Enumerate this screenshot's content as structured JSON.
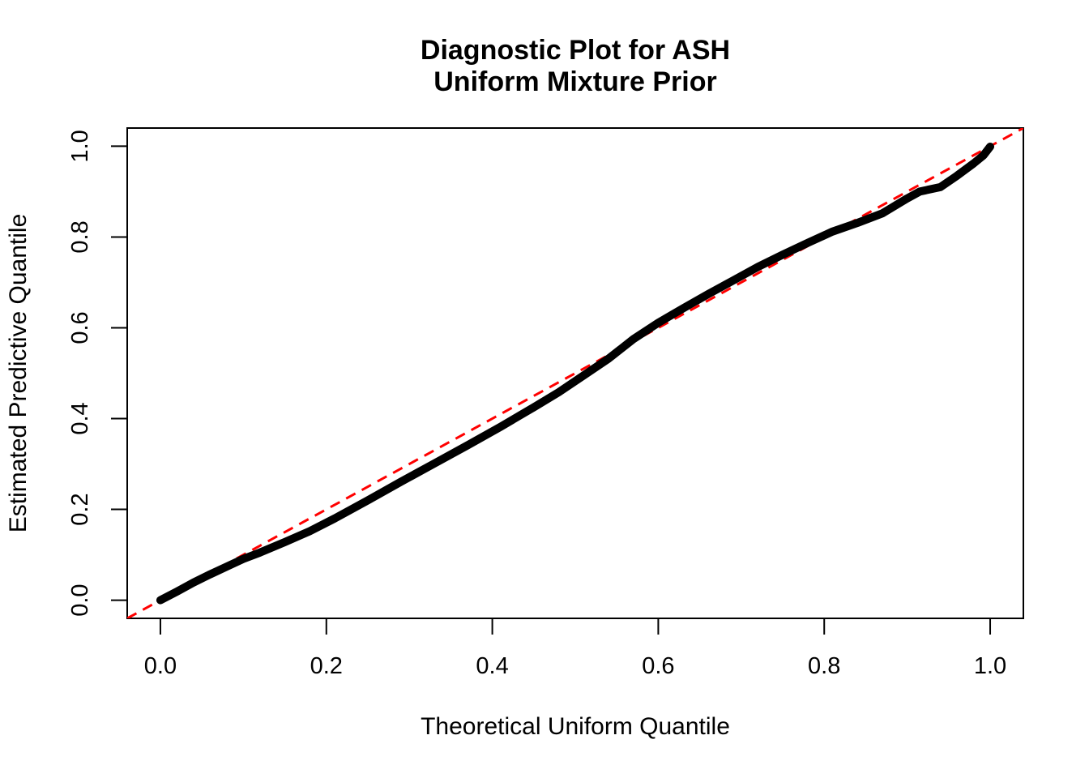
{
  "figure": {
    "background_color": "#ffffff",
    "foreground_color": "#000000",
    "accent_color": "#FF0000"
  },
  "chart_data": {
    "type": "line",
    "title_line1": "Diagnostic Plot for ASH",
    "title_line2": "Uniform Mixture Prior",
    "xlabel": "Theoretical Uniform Quantile",
    "ylabel": "Estimated Predictive Quantile",
    "xlim": [
      -0.04,
      1.04
    ],
    "ylim": [
      -0.04,
      1.04
    ],
    "x_ticks": [
      "0.0",
      "0.2",
      "0.4",
      "0.6",
      "0.8",
      "1.0"
    ],
    "y_ticks": [
      "0.0",
      "0.2",
      "0.4",
      "0.6",
      "0.8",
      "1.0"
    ],
    "grid": false,
    "legend": false,
    "series": [
      {
        "name": "estimated-predictive-quantiles",
        "type": "line",
        "color": "#000000",
        "style": "solid",
        "linewidth": 10,
        "points": [
          [
            0.0,
            0.0
          ],
          [
            0.02,
            0.019
          ],
          [
            0.04,
            0.039
          ],
          [
            0.06,
            0.057
          ],
          [
            0.08,
            0.074
          ],
          [
            0.1,
            0.091
          ],
          [
            0.12,
            0.105
          ],
          [
            0.15,
            0.128
          ],
          [
            0.18,
            0.152
          ],
          [
            0.21,
            0.18
          ],
          [
            0.25,
            0.22
          ],
          [
            0.29,
            0.261
          ],
          [
            0.33,
            0.301
          ],
          [
            0.37,
            0.341
          ],
          [
            0.41,
            0.382
          ],
          [
            0.45,
            0.425
          ],
          [
            0.48,
            0.458
          ],
          [
            0.51,
            0.495
          ],
          [
            0.54,
            0.532
          ],
          [
            0.57,
            0.575
          ],
          [
            0.6,
            0.611
          ],
          [
            0.63,
            0.643
          ],
          [
            0.66,
            0.674
          ],
          [
            0.69,
            0.704
          ],
          [
            0.72,
            0.734
          ],
          [
            0.75,
            0.761
          ],
          [
            0.78,
            0.787
          ],
          [
            0.81,
            0.812
          ],
          [
            0.84,
            0.831
          ],
          [
            0.87,
            0.852
          ],
          [
            0.9,
            0.885
          ],
          [
            0.915,
            0.9
          ],
          [
            0.94,
            0.91
          ],
          [
            0.96,
            0.935
          ],
          [
            0.98,
            0.962
          ],
          [
            0.992,
            0.98
          ],
          [
            1.0,
            0.999
          ]
        ]
      },
      {
        "name": "identity-reference-line",
        "type": "line",
        "color": "#FF0000",
        "style": "dashed",
        "linewidth": 3,
        "points": [
          [
            -0.04,
            -0.04
          ],
          [
            1.04,
            1.04
          ]
        ]
      }
    ]
  }
}
